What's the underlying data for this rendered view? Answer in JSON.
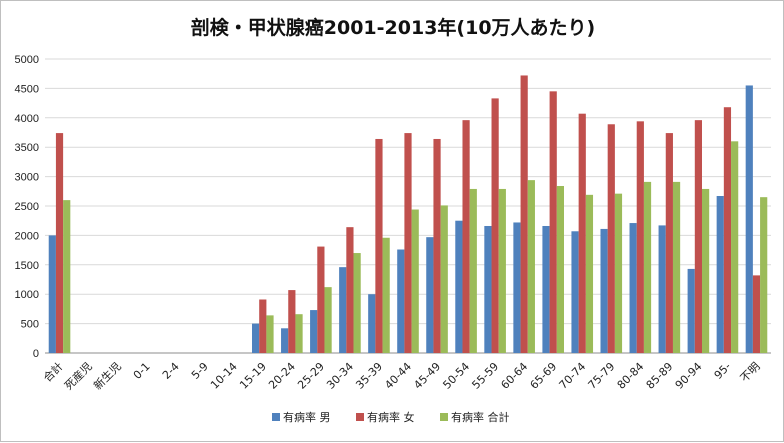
{
  "chart_data": {
    "type": "bar",
    "title": "剖検・甲状腺癌2001-2013年(10万人あたり)",
    "ylim": [
      0,
      5000
    ],
    "yticks": [
      0,
      500,
      1000,
      1500,
      2000,
      2500,
      3000,
      3500,
      4000,
      4500,
      5000
    ],
    "grid": true,
    "legend_position": "bottom",
    "categories": [
      "合計",
      "死産児",
      "新生児",
      "0-1",
      "2-4",
      "5-9",
      "10-14",
      "15-19",
      "20-24",
      "25-29",
      "30-34",
      "35-39",
      "40-44",
      "45-49",
      "50-54",
      "55-59",
      "60-64",
      "65-69",
      "70-74",
      "75-79",
      "80-84",
      "85-89",
      "90-94",
      "95-",
      "不明"
    ],
    "series": [
      {
        "name": "有病率 男",
        "color": "#4f81bd",
        "values": [
          2000,
          0,
          0,
          0,
          0,
          0,
          0,
          500,
          420,
          730,
          1460,
          1000,
          1760,
          1970,
          2250,
          2160,
          2220,
          2160,
          2070,
          2110,
          2210,
          2170,
          1430,
          2670,
          4550
        ]
      },
      {
        "name": "有病率 女",
        "color": "#c0504d",
        "values": [
          3740,
          0,
          0,
          0,
          0,
          0,
          0,
          910,
          1070,
          1810,
          2140,
          3640,
          3740,
          3640,
          3960,
          4330,
          4720,
          4450,
          4070,
          3890,
          3940,
          3740,
          3960,
          4180,
          1320
        ]
      },
      {
        "name": "有病率 合計",
        "color": "#9bbb59",
        "values": [
          2600,
          0,
          0,
          0,
          0,
          0,
          0,
          640,
          660,
          1120,
          1700,
          1960,
          2440,
          2510,
          2790,
          2790,
          2940,
          2840,
          2690,
          2710,
          2910,
          2910,
          2790,
          3600,
          2650
        ]
      }
    ]
  }
}
